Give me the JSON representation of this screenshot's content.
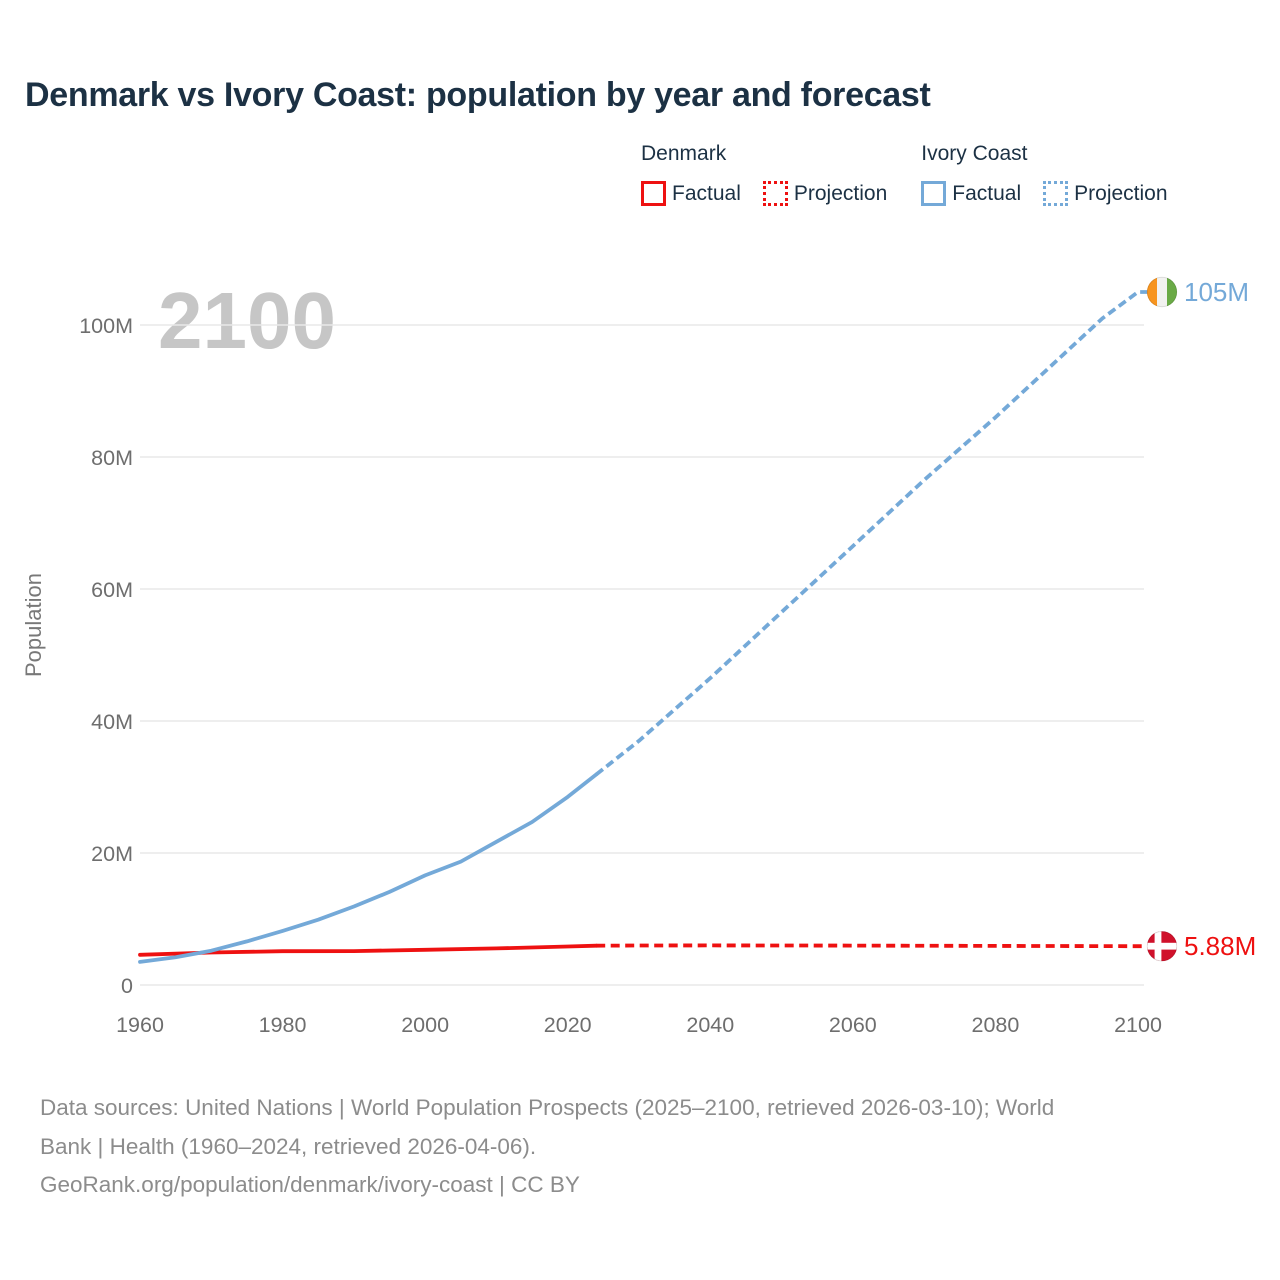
{
  "header": {
    "title": "Denmark vs Ivory Coast: population by year and forecast"
  },
  "legend": {
    "groups": [
      {
        "title": "Denmark",
        "color": "#ee1111",
        "items": [
          {
            "label": "Factual",
            "style": "solid"
          },
          {
            "label": "Projection",
            "style": "dotted"
          }
        ]
      },
      {
        "title": "Ivory Coast",
        "color": "#74a9d8",
        "items": [
          {
            "label": "Factual",
            "style": "solid"
          },
          {
            "label": "Projection",
            "style": "dotted"
          }
        ]
      }
    ]
  },
  "chart_data": {
    "type": "line",
    "title": "Denmark vs Ivory Coast: population by year and forecast",
    "xlabel": "",
    "ylabel": "Population",
    "watermark": "2100",
    "xlim": [
      1960,
      2100
    ],
    "ylim_millions": [
      0,
      107
    ],
    "grid": "horizontal",
    "legend_position": "top-right",
    "yticks": [
      {
        "v": 0,
        "label": "0"
      },
      {
        "v": 20,
        "label": "20M"
      },
      {
        "v": 40,
        "label": "40M"
      },
      {
        "v": 60,
        "label": "60M"
      },
      {
        "v": 80,
        "label": "80M"
      },
      {
        "v": 100,
        "label": "100M"
      }
    ],
    "xticks": [
      {
        "v": 1960,
        "label": "1960"
      },
      {
        "v": 1980,
        "label": "1980"
      },
      {
        "v": 2000,
        "label": "2000"
      },
      {
        "v": 2020,
        "label": "2020"
      },
      {
        "v": 2040,
        "label": "2040"
      },
      {
        "v": 2060,
        "label": "2060"
      },
      {
        "v": 2080,
        "label": "2080"
      },
      {
        "v": 2100,
        "label": "2100"
      }
    ],
    "series": [
      {
        "name": "Denmark",
        "color": "#ee1111",
        "dash": "9 5.5",
        "end_label": "5.88M",
        "flag": "denmark",
        "factual": {
          "years": [
            1960,
            1970,
            1980,
            1990,
            2000,
            2010,
            2020,
            2024
          ],
          "values_millions": [
            4.58,
            4.93,
            5.12,
            5.14,
            5.34,
            5.55,
            5.83,
            5.95
          ]
        },
        "projection": {
          "years": [
            2030,
            2040,
            2060,
            2080,
            2100
          ],
          "values_millions": [
            5.98,
            6.0,
            5.97,
            5.92,
            5.88
          ]
        }
      },
      {
        "name": "Ivory Coast",
        "color": "#74a9d8",
        "dash": "8.5 4.5",
        "end_label": "105M",
        "flag": "ivory_coast",
        "factual": {
          "years": [
            1960,
            1965,
            1970,
            1975,
            1980,
            1985,
            1990,
            1995,
            2000,
            2005,
            2010,
            2015,
            2020,
            2024
          ],
          "values_millions": [
            3.5,
            4.2,
            5.2,
            6.6,
            8.2,
            9.9,
            11.9,
            14.1,
            16.6,
            18.7,
            21.7,
            24.7,
            28.5,
            31.9
          ]
        },
        "projection": {
          "years": [
            2030,
            2040,
            2050,
            2060,
            2070,
            2080,
            2090,
            2095,
            2100
          ],
          "values_millions": [
            37.0,
            46.5,
            56.5,
            66.5,
            76.5,
            86.0,
            96.0,
            101.0,
            105.0
          ]
        }
      }
    ],
    "flag_colors": {
      "ivory_coast": [
        "#f7941e",
        "#f2f2f0",
        "#6aaa46"
      ],
      "denmark": {
        "bg": "#d0112b",
        "cross": "#ffffff"
      }
    }
  },
  "footer": {
    "line1": "Data sources: United Nations | World Population Prospects (2025–2100, retrieved 2026-03-10); World",
    "line2": "Bank | Health (1960–2024, retrieved 2026-04-06).",
    "line3": "GeoRank.org/population/denmark/ivory-coast | CC BY"
  }
}
